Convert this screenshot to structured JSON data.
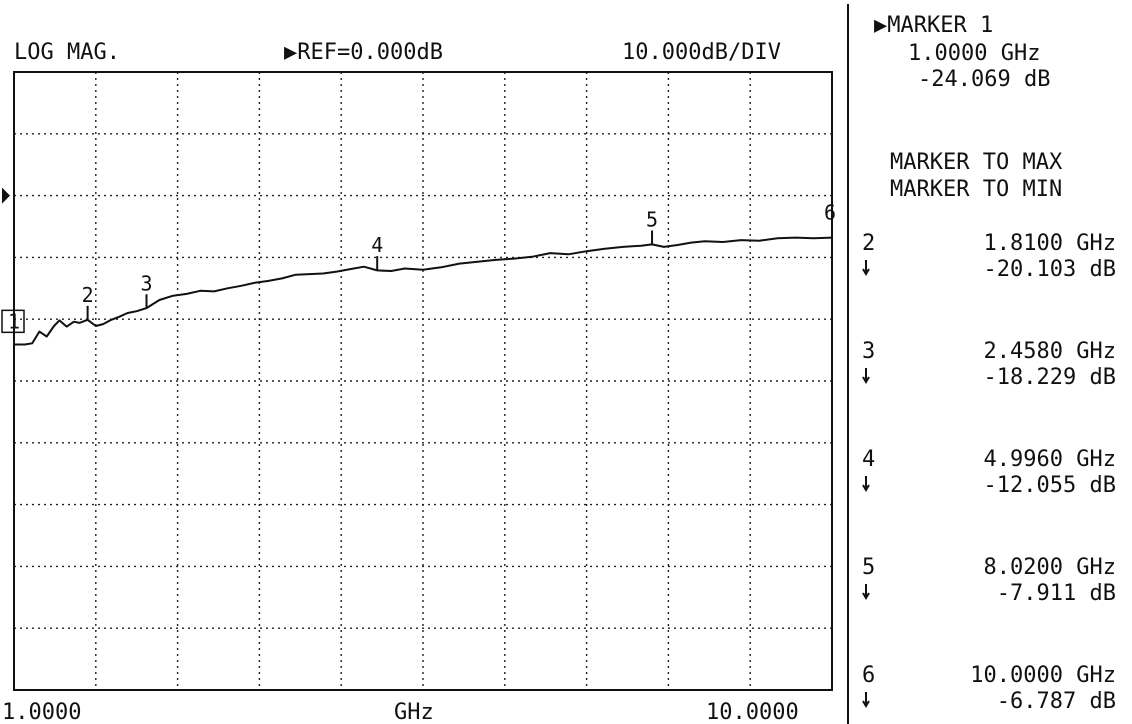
{
  "header": {
    "format": "LOG MAG.",
    "reference": "▶REF=0.000dB",
    "scale": "10.000dB/DIV"
  },
  "active_marker": {
    "title": "▶MARKER 1",
    "freq": "1.0000 GHz",
    "value": "-24.069 dB"
  },
  "menu": {
    "to_max": "MARKER TO MAX",
    "to_min": "MARKER TO MIN"
  },
  "marker_list": [
    {
      "num": "2",
      "freq": "1.8100 GHz",
      "value": "-20.103 dB"
    },
    {
      "num": "3",
      "freq": "2.4580 GHz",
      "value": "-18.229 dB"
    },
    {
      "num": "4",
      "freq": "4.9960 GHz",
      "value": "-12.055 dB"
    },
    {
      "num": "5",
      "freq": "8.0200 GHz",
      "value": "-7.911 dB"
    },
    {
      "num": "6",
      "freq": "10.0000 GHz",
      "value": "-6.787 dB"
    }
  ],
  "colors": {
    "ink": "#111111",
    "paper": "#ffffff"
  },
  "chart_data": {
    "type": "line",
    "title": "",
    "xlabel": "GHz",
    "ylabel": "",
    "x_start_label": "1.0000",
    "x_stop_label": "10.0000",
    "xlim": [
      1.0,
      10.0
    ],
    "ylim": [
      -80,
      20
    ],
    "ref_level_db": 0,
    "db_per_div": 10,
    "grid": true,
    "series": [
      {
        "x": [
          1.0,
          1.07,
          1.12,
          1.2,
          1.28,
          1.36,
          1.44,
          1.5,
          1.58,
          1.66,
          1.72,
          1.81,
          1.9,
          1.98,
          2.07,
          2.16,
          2.25,
          2.35,
          2.458,
          2.6,
          2.75,
          2.9,
          3.05,
          3.2,
          3.35,
          3.5,
          3.65,
          3.8,
          3.95,
          4.1,
          4.25,
          4.4,
          4.55,
          4.7,
          4.85,
          4.996,
          5.15,
          5.3,
          5.5,
          5.7,
          5.9,
          6.1,
          6.3,
          6.5,
          6.7,
          6.9,
          7.1,
          7.3,
          7.5,
          7.7,
          7.9,
          8.02,
          8.15,
          8.3,
          8.45,
          8.6,
          8.8,
          9.0,
          9.2,
          9.4,
          9.6,
          9.8,
          10.0
        ],
        "y": [
          -24.1,
          -24.1,
          -24.1,
          -23.9,
          -22.0,
          -22.8,
          -21.1,
          -20.2,
          -21.2,
          -20.4,
          -20.6,
          -20.1,
          -21.1,
          -20.8,
          -20.1,
          -19.6,
          -19.0,
          -18.7,
          -18.2,
          -16.9,
          -16.2,
          -15.9,
          -15.4,
          -15.5,
          -15.0,
          -14.6,
          -14.1,
          -13.8,
          -13.4,
          -12.8,
          -12.7,
          -12.6,
          -12.3,
          -11.9,
          -11.5,
          -12.1,
          -12.2,
          -11.8,
          -12.0,
          -11.6,
          -11.0,
          -10.7,
          -10.4,
          -10.2,
          -9.9,
          -9.3,
          -9.5,
          -9.0,
          -8.6,
          -8.3,
          -8.1,
          -7.9,
          -8.3,
          -8.0,
          -7.6,
          -7.4,
          -7.5,
          -7.2,
          -7.3,
          -6.9,
          -6.8,
          -6.9,
          -6.8
        ]
      }
    ],
    "markers": [
      {
        "num": "1",
        "x": 1.0,
        "y": -24.069
      },
      {
        "num": "2",
        "x": 1.81,
        "y": -20.103
      },
      {
        "num": "3",
        "x": 2.458,
        "y": -18.229
      },
      {
        "num": "4",
        "x": 4.996,
        "y": -12.055
      },
      {
        "num": "5",
        "x": 8.02,
        "y": -7.911
      },
      {
        "num": "6",
        "x": 10.0,
        "y": -6.787
      }
    ]
  }
}
